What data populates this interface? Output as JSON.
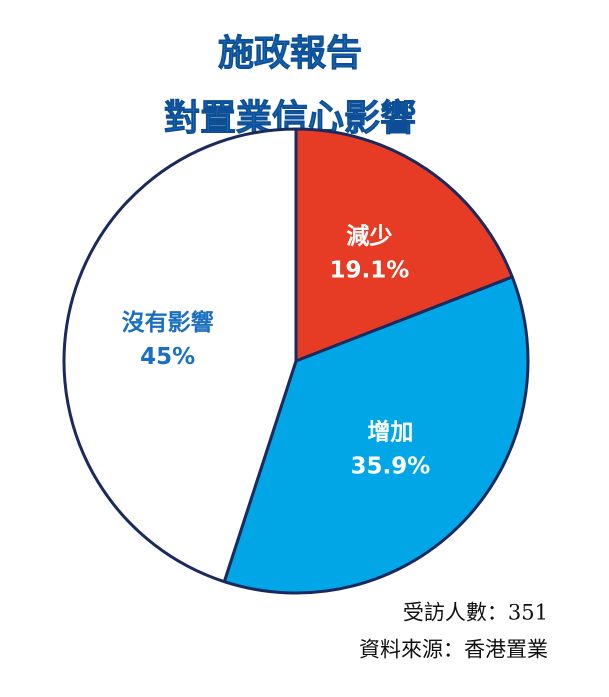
{
  "chart_data": {
    "type": "pie",
    "title": "施政報告",
    "subtitle": "對置業信心影響",
    "categories": [
      "減少",
      "增加",
      "沒有影響"
    ],
    "values": [
      19.1,
      35.9,
      45
    ],
    "value_labels": [
      "19.1%",
      "35.9%",
      "45%"
    ],
    "colors": [
      "#e63b24",
      "#00a6e6",
      "#ffffff"
    ],
    "label_colors": [
      "#ffffff",
      "#ffffff",
      "#1a6fc0"
    ],
    "notes": [
      "受訪人數：351",
      "資料來源：香港置業"
    ]
  }
}
